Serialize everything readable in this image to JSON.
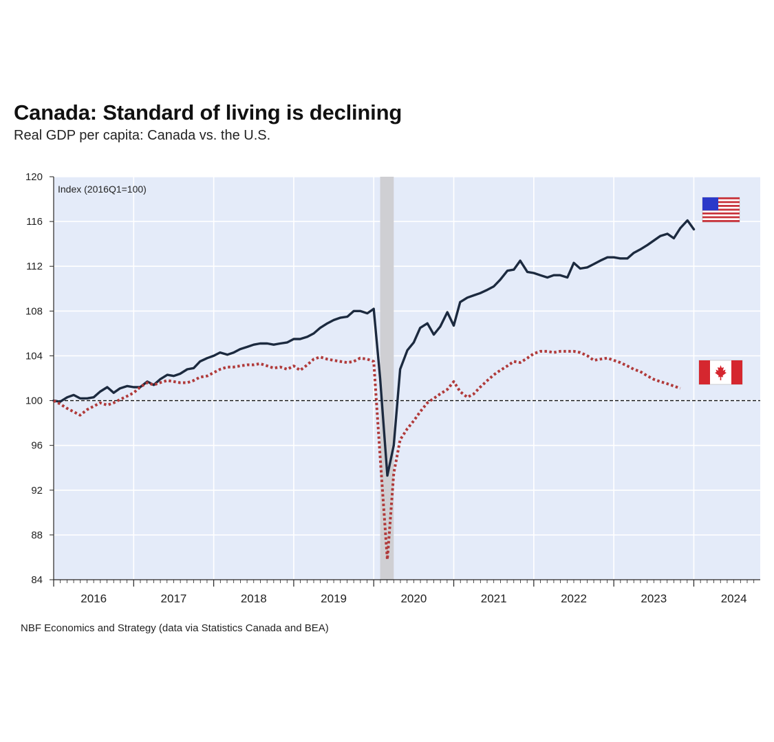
{
  "chart_data": {
    "type": "line",
    "title": "Canada: Standard of living is declining",
    "subtitle": "Real GDP per capita: Canada vs. the U.S.",
    "ylabel": "Index (2016Q1=100)",
    "ylim": [
      84,
      120
    ],
    "yticks": [
      "84",
      "88",
      "92",
      "96",
      "100",
      "104",
      "108",
      "112",
      "116",
      "120"
    ],
    "xlim": [
      2016.0,
      2024.83
    ],
    "xticks": [
      {
        "label": "2016",
        "x": 2016.5
      },
      {
        "label": "2017",
        "x": 2017.5
      },
      {
        "label": "2018",
        "x": 2018.5
      },
      {
        "label": "2019",
        "x": 2019.5
      },
      {
        "label": "2020",
        "x": 2020.5
      },
      {
        "label": "2021",
        "x": 2021.5
      },
      {
        "label": "2022",
        "x": 2022.5
      },
      {
        "label": "2023",
        "x": 2023.5
      },
      {
        "label": "2024",
        "x": 2024.5
      }
    ],
    "reference_line": 100,
    "recession_shade": [
      2020.08,
      2020.25
    ],
    "source": "NBF Economics and Strategy (data via Statistics Canada and BEA)",
    "series": [
      {
        "name": "U.S.",
        "color": "#1c2a3f",
        "style": "solid",
        "flag": "us-flag",
        "points": [
          [
            2016.0,
            100.0
          ],
          [
            2016.08,
            99.9
          ],
          [
            2016.17,
            100.3
          ],
          [
            2016.25,
            100.5
          ],
          [
            2016.33,
            100.2
          ],
          [
            2016.42,
            100.2
          ],
          [
            2016.5,
            100.3
          ],
          [
            2016.58,
            100.8
          ],
          [
            2016.67,
            101.2
          ],
          [
            2016.75,
            100.7
          ],
          [
            2016.83,
            101.1
          ],
          [
            2016.92,
            101.3
          ],
          [
            2017.0,
            101.2
          ],
          [
            2017.08,
            101.2
          ],
          [
            2017.17,
            101.7
          ],
          [
            2017.25,
            101.4
          ],
          [
            2017.33,
            101.9
          ],
          [
            2017.42,
            102.3
          ],
          [
            2017.5,
            102.2
          ],
          [
            2017.58,
            102.4
          ],
          [
            2017.67,
            102.8
          ],
          [
            2017.75,
            102.9
          ],
          [
            2017.83,
            103.5
          ],
          [
            2017.92,
            103.8
          ],
          [
            2018.0,
            104.0
          ],
          [
            2018.08,
            104.3
          ],
          [
            2018.17,
            104.1
          ],
          [
            2018.25,
            104.3
          ],
          [
            2018.33,
            104.6
          ],
          [
            2018.42,
            104.8
          ],
          [
            2018.5,
            105.0
          ],
          [
            2018.58,
            105.1
          ],
          [
            2018.67,
            105.1
          ],
          [
            2018.75,
            105.0
          ],
          [
            2018.83,
            105.1
          ],
          [
            2018.92,
            105.2
          ],
          [
            2019.0,
            105.5
          ],
          [
            2019.08,
            105.5
          ],
          [
            2019.17,
            105.7
          ],
          [
            2019.25,
            106.0
          ],
          [
            2019.33,
            106.5
          ],
          [
            2019.42,
            106.9
          ],
          [
            2019.5,
            107.2
          ],
          [
            2019.58,
            107.4
          ],
          [
            2019.67,
            107.5
          ],
          [
            2019.75,
            108.0
          ],
          [
            2019.83,
            108.0
          ],
          [
            2019.92,
            107.8
          ],
          [
            2020.0,
            108.2
          ],
          [
            2020.08,
            102.0
          ],
          [
            2020.17,
            93.3
          ],
          [
            2020.25,
            96.0
          ],
          [
            2020.33,
            102.8
          ],
          [
            2020.42,
            104.5
          ],
          [
            2020.5,
            105.2
          ],
          [
            2020.58,
            106.5
          ],
          [
            2020.67,
            106.9
          ],
          [
            2020.75,
            105.9
          ],
          [
            2020.83,
            106.6
          ],
          [
            2020.92,
            107.9
          ],
          [
            2021.0,
            106.7
          ],
          [
            2021.08,
            108.8
          ],
          [
            2021.17,
            109.2
          ],
          [
            2021.25,
            109.4
          ],
          [
            2021.33,
            109.6
          ],
          [
            2021.42,
            109.9
          ],
          [
            2021.5,
            110.2
          ],
          [
            2021.58,
            110.8
          ],
          [
            2021.67,
            111.6
          ],
          [
            2021.75,
            111.7
          ],
          [
            2021.83,
            112.5
          ],
          [
            2021.92,
            111.5
          ],
          [
            2022.0,
            111.4
          ],
          [
            2022.08,
            111.2
          ],
          [
            2022.17,
            111.0
          ],
          [
            2022.25,
            111.2
          ],
          [
            2022.33,
            111.2
          ],
          [
            2022.42,
            111.0
          ],
          [
            2022.5,
            112.3
          ],
          [
            2022.58,
            111.8
          ],
          [
            2022.67,
            111.9
          ],
          [
            2022.75,
            112.2
          ],
          [
            2022.83,
            112.5
          ],
          [
            2022.92,
            112.8
          ],
          [
            2023.0,
            112.8
          ],
          [
            2023.08,
            112.7
          ],
          [
            2023.17,
            112.7
          ],
          [
            2023.25,
            113.2
          ],
          [
            2023.33,
            113.5
          ],
          [
            2023.42,
            113.9
          ],
          [
            2023.5,
            114.3
          ],
          [
            2023.58,
            114.7
          ],
          [
            2023.67,
            114.9
          ],
          [
            2023.75,
            114.5
          ],
          [
            2023.83,
            115.4
          ],
          [
            2023.92,
            116.1
          ],
          [
            2024.0,
            115.3
          ]
        ]
      },
      {
        "name": "Canada",
        "color": "#b03a3a",
        "style": "dotted",
        "flag": "canada-flag",
        "points": [
          [
            2016.0,
            100.0
          ],
          [
            2016.08,
            99.7
          ],
          [
            2016.17,
            99.3
          ],
          [
            2016.25,
            99.0
          ],
          [
            2016.33,
            98.7
          ],
          [
            2016.42,
            99.2
          ],
          [
            2016.5,
            99.5
          ],
          [
            2016.58,
            99.8
          ],
          [
            2016.67,
            99.6
          ],
          [
            2016.75,
            99.8
          ],
          [
            2016.83,
            100.1
          ],
          [
            2016.92,
            100.4
          ],
          [
            2017.0,
            100.7
          ],
          [
            2017.08,
            101.2
          ],
          [
            2017.17,
            101.6
          ],
          [
            2017.25,
            101.4
          ],
          [
            2017.33,
            101.6
          ],
          [
            2017.42,
            101.8
          ],
          [
            2017.5,
            101.7
          ],
          [
            2017.58,
            101.6
          ],
          [
            2017.67,
            101.6
          ],
          [
            2017.75,
            101.8
          ],
          [
            2017.83,
            102.1
          ],
          [
            2017.92,
            102.2
          ],
          [
            2018.0,
            102.5
          ],
          [
            2018.08,
            102.8
          ],
          [
            2018.17,
            103.0
          ],
          [
            2018.25,
            103.0
          ],
          [
            2018.33,
            103.1
          ],
          [
            2018.42,
            103.2
          ],
          [
            2018.5,
            103.2
          ],
          [
            2018.58,
            103.3
          ],
          [
            2018.67,
            103.1
          ],
          [
            2018.75,
            102.9
          ],
          [
            2018.83,
            103.0
          ],
          [
            2018.92,
            102.8
          ],
          [
            2019.0,
            103.1
          ],
          [
            2019.08,
            102.7
          ],
          [
            2019.17,
            103.2
          ],
          [
            2019.25,
            103.7
          ],
          [
            2019.33,
            103.9
          ],
          [
            2019.42,
            103.7
          ],
          [
            2019.5,
            103.6
          ],
          [
            2019.58,
            103.5
          ],
          [
            2019.67,
            103.4
          ],
          [
            2019.75,
            103.5
          ],
          [
            2019.83,
            103.8
          ],
          [
            2019.92,
            103.7
          ],
          [
            2020.0,
            103.5
          ],
          [
            2020.08,
            95.0
          ],
          [
            2020.17,
            85.8
          ],
          [
            2020.25,
            93.5
          ],
          [
            2020.33,
            96.5
          ],
          [
            2020.42,
            97.5
          ],
          [
            2020.5,
            98.2
          ],
          [
            2020.58,
            99.0
          ],
          [
            2020.67,
            99.8
          ],
          [
            2020.75,
            100.2
          ],
          [
            2020.83,
            100.6
          ],
          [
            2020.92,
            101.0
          ],
          [
            2021.0,
            101.7
          ],
          [
            2021.08,
            100.8
          ],
          [
            2021.17,
            100.3
          ],
          [
            2021.25,
            100.6
          ],
          [
            2021.33,
            101.2
          ],
          [
            2021.42,
            101.8
          ],
          [
            2021.5,
            102.3
          ],
          [
            2021.58,
            102.7
          ],
          [
            2021.67,
            103.1
          ],
          [
            2021.75,
            103.5
          ],
          [
            2021.83,
            103.4
          ],
          [
            2021.92,
            103.8
          ],
          [
            2022.0,
            104.2
          ],
          [
            2022.08,
            104.4
          ],
          [
            2022.17,
            104.4
          ],
          [
            2022.25,
            104.3
          ],
          [
            2022.33,
            104.4
          ],
          [
            2022.42,
            104.4
          ],
          [
            2022.5,
            104.4
          ],
          [
            2022.58,
            104.3
          ],
          [
            2022.67,
            104.0
          ],
          [
            2022.75,
            103.6
          ],
          [
            2022.83,
            103.7
          ],
          [
            2022.92,
            103.8
          ],
          [
            2023.0,
            103.6
          ],
          [
            2023.08,
            103.4
          ],
          [
            2023.17,
            103.1
          ],
          [
            2023.25,
            102.8
          ],
          [
            2023.33,
            102.6
          ],
          [
            2023.42,
            102.2
          ],
          [
            2023.5,
            101.9
          ],
          [
            2023.58,
            101.7
          ],
          [
            2023.67,
            101.5
          ],
          [
            2023.75,
            101.3
          ],
          [
            2023.83,
            101.1
          ]
        ]
      }
    ]
  }
}
